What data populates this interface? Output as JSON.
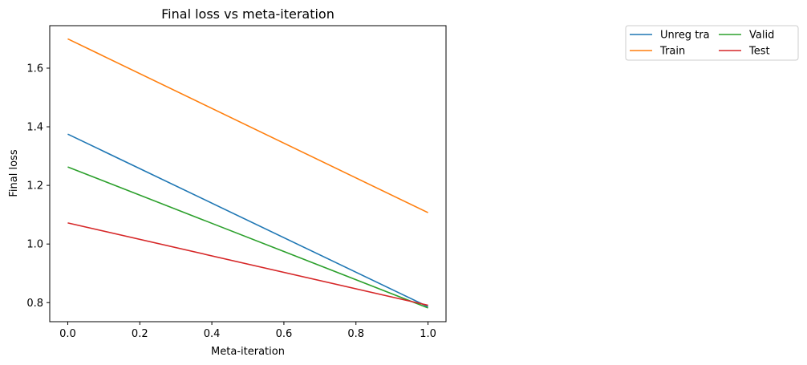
{
  "chart_data": {
    "type": "line",
    "title": "Final loss vs meta-iteration",
    "xlabel": "Meta-iteration",
    "ylabel": "Final loss",
    "xlim": [
      -0.05,
      1.05
    ],
    "ylim": [
      0.735,
      1.745
    ],
    "xticks": [
      0.0,
      0.2,
      0.4,
      0.6,
      0.8,
      1.0
    ],
    "xtick_labels": [
      "0.0",
      "0.2",
      "0.4",
      "0.6",
      "0.8",
      "1.0"
    ],
    "yticks": [
      0.8,
      1.0,
      1.2,
      1.4,
      1.6
    ],
    "ytick_labels": [
      "0.8",
      "1.0",
      "1.2",
      "1.4",
      "1.6"
    ],
    "grid": false,
    "legend_position": "outside-right-top",
    "legend_columns": 2,
    "x": [
      0,
      1
    ],
    "series": [
      {
        "name": "Unreg tra",
        "color": "#1f77b4",
        "values": [
          1.375,
          0.786
        ]
      },
      {
        "name": "Train",
        "color": "#ff7f0e",
        "values": [
          1.7,
          1.107
        ]
      },
      {
        "name": "Valid",
        "color": "#2ca02c",
        "values": [
          1.263,
          0.782
        ]
      },
      {
        "name": "Test",
        "color": "#d62728",
        "values": [
          1.072,
          0.791
        ]
      }
    ]
  }
}
